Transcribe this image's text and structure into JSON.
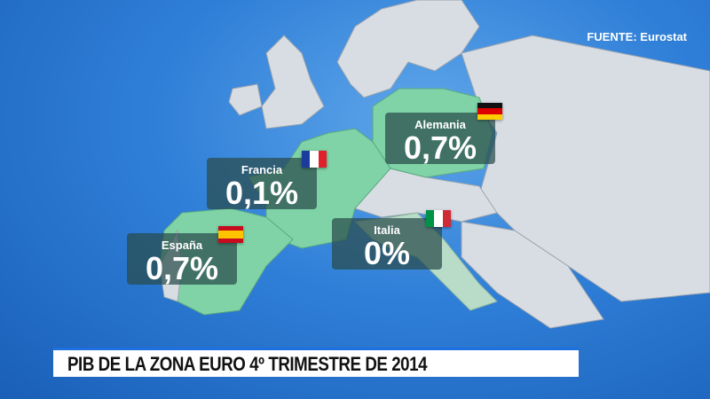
{
  "source": "FUENTE: Eurostat",
  "headline": "PIB DE LA ZONA EURO 4º TRIMESTRE DE 2014",
  "colors": {
    "highlight": "#7fd3a6",
    "land": "#d8dde3",
    "sea": "#2f7fd8",
    "italy": "#b9dcc8"
  },
  "countries": [
    {
      "name": "Alemania",
      "value": "0,7%",
      "flag": "germany-flag-icon"
    },
    {
      "name": "Francia",
      "value": "0,1%",
      "flag": "france-flag-icon"
    },
    {
      "name": "España",
      "value": "0,7%",
      "flag": "spain-flag-icon"
    },
    {
      "name": "Italia",
      "value": "0%",
      "flag": "italy-flag-icon"
    }
  ]
}
